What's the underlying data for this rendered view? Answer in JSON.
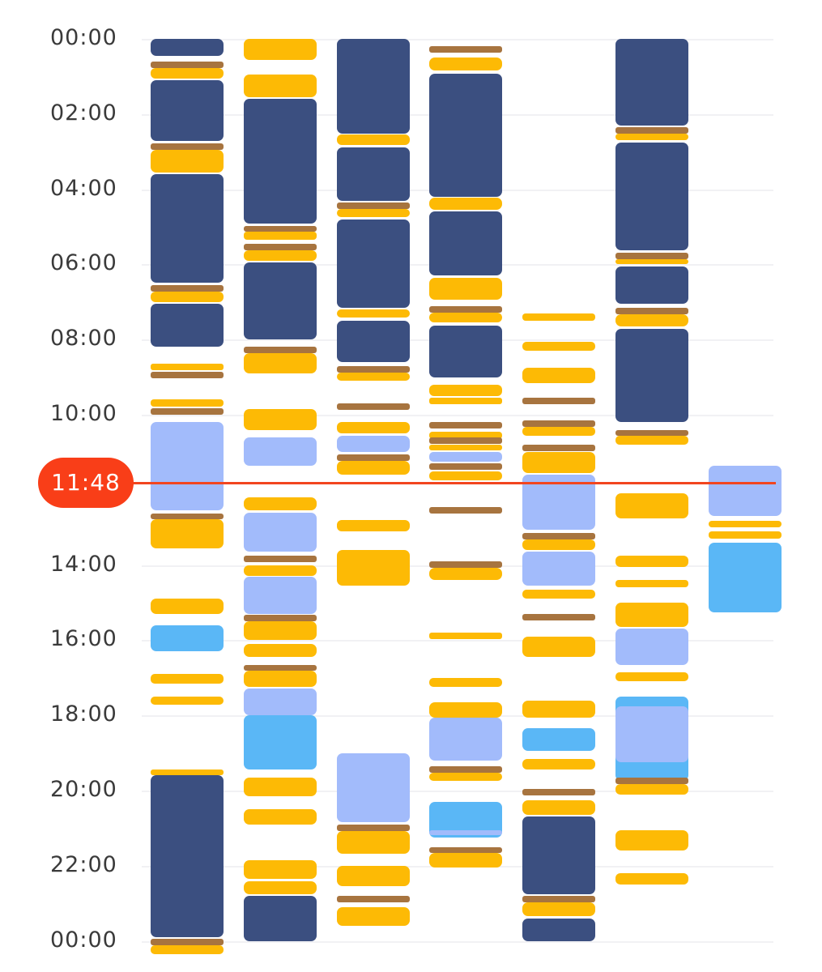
{
  "time_axis": {
    "labels": [
      "00:00",
      "02:00",
      "04:00",
      "06:00",
      "08:00",
      "10:00",
      "14:00",
      "16:00",
      "18:00",
      "20:00",
      "22:00",
      "00:00"
    ],
    "hours": [
      0,
      2,
      4,
      6,
      8,
      10,
      14,
      16,
      18,
      20,
      22,
      24
    ]
  },
  "current_time": {
    "label": "11:48",
    "hour": 11.8
  },
  "colors": {
    "deep": "#3b4f80",
    "light": "#a2bbfb",
    "rem": "#5ab7f6",
    "awake": "#fdba05",
    "brown": "#a7743f"
  },
  "days": [
    {
      "blocks": [
        [
          "deep",
          0.0,
          0.45
        ],
        [
          "brown",
          0.6,
          0.77
        ],
        [
          "awake",
          0.77,
          1.05
        ],
        [
          "deep",
          1.1,
          2.72
        ],
        [
          "brown",
          2.78,
          2.95
        ],
        [
          "awake",
          2.95,
          3.55
        ],
        [
          "deep",
          3.6,
          6.48
        ],
        [
          "brown",
          6.55,
          6.72
        ],
        [
          "awake",
          6.72,
          7.0
        ],
        [
          "deep",
          7.05,
          8.2
        ],
        [
          "awake",
          8.65,
          8.82
        ],
        [
          "brown",
          8.85,
          9.02
        ],
        [
          "awake",
          9.6,
          9.78
        ],
        [
          "brown",
          9.82,
          9.99
        ],
        [
          "light",
          10.2,
          12.55
        ],
        [
          "brown",
          12.62,
          12.79
        ],
        [
          "awake",
          12.79,
          13.55
        ],
        [
          "awake",
          14.9,
          15.3
        ],
        [
          "rem",
          15.6,
          16.3
        ],
        [
          "awake",
          16.9,
          17.15
        ],
        [
          "awake",
          17.5,
          17.72
        ],
        [
          "awake",
          19.45,
          19.6
        ],
        [
          "deep",
          19.6,
          23.9
        ],
        [
          "brown",
          23.95,
          24.12
        ],
        [
          "awake",
          24.12,
          24.35
        ]
      ]
    },
    {
      "blocks": [
        [
          "awake",
          0.0,
          0.55
        ],
        [
          "awake",
          0.95,
          1.55
        ],
        [
          "deep",
          1.6,
          4.92
        ],
        [
          "brown",
          4.97,
          5.14
        ],
        [
          "awake",
          5.14,
          5.35
        ],
        [
          "brown",
          5.45,
          5.62
        ],
        [
          "awake",
          5.62,
          5.9
        ],
        [
          "deep",
          5.95,
          8.0
        ],
        [
          "brown",
          8.2,
          8.37
        ],
        [
          "awake",
          8.37,
          8.9
        ],
        [
          "awake",
          9.85,
          10.4
        ],
        [
          "light",
          10.6,
          11.35
        ],
        [
          "awake",
          12.2,
          12.55
        ],
        [
          "light",
          12.6,
          13.65
        ],
        [
          "brown",
          13.75,
          13.92
        ],
        [
          "awake",
          14.0,
          14.28
        ],
        [
          "light",
          14.3,
          15.3
        ],
        [
          "brown",
          15.33,
          15.5
        ],
        [
          "awake",
          15.5,
          16.0
        ],
        [
          "awake",
          16.1,
          16.45
        ],
        [
          "brown",
          16.65,
          16.82
        ],
        [
          "awake",
          16.82,
          17.25
        ],
        [
          "light",
          17.28,
          18.0
        ],
        [
          "rem",
          18.0,
          19.45
        ],
        [
          "awake",
          19.65,
          20.15
        ],
        [
          "awake",
          20.5,
          20.9
        ],
        [
          "awake",
          21.85,
          22.35
        ],
        [
          "awake",
          22.42,
          22.75
        ],
        [
          "deep",
          22.8,
          24.0
        ]
      ]
    },
    {
      "blocks": [
        [
          "deep",
          0.0,
          2.52
        ],
        [
          "awake",
          2.55,
          2.82
        ],
        [
          "deep",
          2.88,
          4.3
        ],
        [
          "brown",
          4.35,
          4.52
        ],
        [
          "awake",
          4.52,
          4.75
        ],
        [
          "deep",
          4.8,
          7.15
        ],
        [
          "awake",
          7.2,
          7.42
        ],
        [
          "deep",
          7.5,
          8.6
        ],
        [
          "brown",
          8.7,
          8.87
        ],
        [
          "awake",
          8.87,
          9.1
        ],
        [
          "brown",
          9.7,
          9.87
        ],
        [
          "awake",
          10.2,
          10.5
        ],
        [
          "light",
          10.55,
          11.0
        ],
        [
          "brown",
          11.05,
          11.22
        ],
        [
          "awake",
          11.22,
          11.6
        ],
        [
          "awake",
          12.8,
          13.1
        ],
        [
          "awake",
          13.6,
          14.55
        ],
        [
          "light",
          19.0,
          20.85
        ],
        [
          "brown",
          20.9,
          21.07
        ],
        [
          "awake",
          21.07,
          21.68
        ],
        [
          "awake",
          22.0,
          22.55
        ],
        [
          "brown",
          22.8,
          22.97
        ],
        [
          "awake",
          23.1,
          23.6
        ]
      ]
    },
    {
      "blocks": [
        [
          "brown",
          0.2,
          0.37
        ],
        [
          "awake",
          0.5,
          0.85
        ],
        [
          "deep",
          0.92,
          4.2
        ],
        [
          "awake",
          4.22,
          4.55
        ],
        [
          "deep",
          4.6,
          6.3
        ],
        [
          "awake",
          6.35,
          6.95
        ],
        [
          "brown",
          7.12,
          7.29
        ],
        [
          "awake",
          7.29,
          7.55
        ],
        [
          "deep",
          7.62,
          9.0
        ],
        [
          "awake",
          9.2,
          9.5
        ],
        [
          "awake",
          9.55,
          9.72
        ],
        [
          "brown",
          10.2,
          10.37
        ],
        [
          "awake",
          10.45,
          10.65
        ],
        [
          "brown",
          10.6,
          10.77
        ],
        [
          "awake",
          10.8,
          10.95
        ],
        [
          "light",
          11.0,
          11.25
        ],
        [
          "brown",
          11.3,
          11.47
        ],
        [
          "awake",
          11.5,
          11.75
        ],
        [
          "brown",
          12.45,
          12.62
        ],
        [
          "brown",
          13.9,
          14.07
        ],
        [
          "awake",
          14.07,
          14.4
        ],
        [
          "awake",
          15.8,
          15.97
        ],
        [
          "awake",
          17.0,
          17.25
        ],
        [
          "awake",
          17.65,
          18.05
        ],
        [
          "light",
          18.05,
          19.2
        ],
        [
          "brown",
          19.35,
          19.52
        ],
        [
          "awake",
          19.52,
          19.75
        ],
        [
          "rem",
          20.3,
          21.25
        ],
        [
          "light",
          21.05,
          21.15
        ],
        [
          "brown",
          21.5,
          21.67
        ],
        [
          "awake",
          21.67,
          22.05
        ]
      ]
    },
    {
      "blocks": [
        [
          "awake",
          7.3,
          7.5
        ],
        [
          "awake",
          8.05,
          8.3
        ],
        [
          "awake",
          8.75,
          9.15
        ],
        [
          "brown",
          9.55,
          9.72
        ],
        [
          "brown",
          10.15,
          10.32
        ],
        [
          "awake",
          10.32,
          10.55
        ],
        [
          "brown",
          10.8,
          10.97
        ],
        [
          "awake",
          11.0,
          11.55
        ],
        [
          "light",
          11.6,
          13.05
        ],
        [
          "brown",
          13.15,
          13.32
        ],
        [
          "awake",
          13.32,
          13.6
        ],
        [
          "light",
          13.65,
          14.55
        ],
        [
          "awake",
          14.65,
          14.9
        ],
        [
          "brown",
          15.3,
          15.47
        ],
        [
          "awake",
          15.9,
          16.45
        ],
        [
          "awake",
          17.6,
          18.05
        ],
        [
          "rem",
          18.35,
          18.95
        ],
        [
          "awake",
          19.15,
          19.45
        ],
        [
          "brown",
          19.95,
          20.12
        ],
        [
          "awake",
          20.25,
          20.65
        ],
        [
          "deep",
          20.7,
          22.75
        ],
        [
          "brown",
          22.8,
          22.97
        ],
        [
          "awake",
          22.97,
          23.35
        ],
        [
          "deep",
          23.4,
          24.0
        ]
      ]
    },
    {
      "blocks": [
        [
          "deep",
          0.0,
          2.3
        ],
        [
          "brown",
          2.35,
          2.52
        ],
        [
          "awake",
          2.52,
          2.7
        ],
        [
          "deep",
          2.75,
          5.62
        ],
        [
          "brown",
          5.7,
          5.87
        ],
        [
          "awake",
          5.87,
          6.0
        ],
        [
          "deep",
          6.05,
          7.05
        ],
        [
          "brown",
          7.15,
          7.32
        ],
        [
          "awake",
          7.32,
          7.65
        ],
        [
          "deep",
          7.72,
          10.2
        ],
        [
          "brown",
          10.4,
          10.57
        ],
        [
          "awake",
          10.57,
          10.8
        ],
        [
          "awake",
          12.1,
          12.75
        ],
        [
          "awake",
          13.75,
          14.05
        ],
        [
          "awake",
          14.4,
          14.6
        ],
        [
          "awake",
          15.0,
          15.65
        ],
        [
          "light",
          15.7,
          16.65
        ],
        [
          "awake",
          16.85,
          17.1
        ],
        [
          "rem",
          17.5,
          19.75
        ],
        [
          "light",
          17.75,
          19.25
        ],
        [
          "brown",
          19.65,
          19.82
        ],
        [
          "awake",
          19.82,
          20.1
        ],
        [
          "awake",
          21.05,
          21.6
        ],
        [
          "awake",
          22.2,
          22.5
        ]
      ]
    },
    {
      "blocks": [
        [
          "light",
          11.35,
          12.7
        ],
        [
          "awake",
          12.82,
          13.0
        ],
        [
          "awake",
          13.1,
          13.3
        ],
        [
          "rem",
          13.4,
          15.25
        ]
      ]
    }
  ]
}
